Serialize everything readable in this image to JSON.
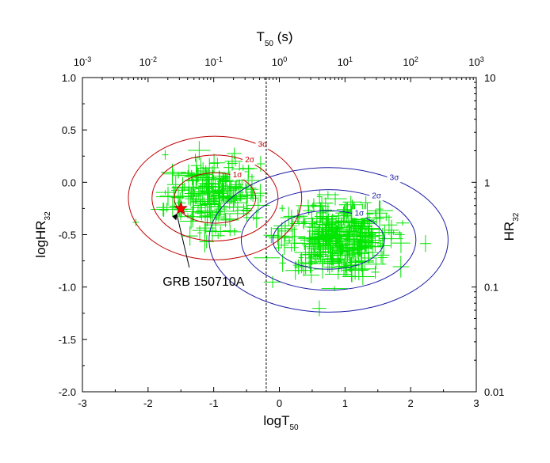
{
  "chart_data": {
    "type": "scatter",
    "title": "",
    "xlabel": {
      "base": "logT",
      "sub": "50"
    },
    "ylabel": {
      "base": "logHR",
      "sub": "32"
    },
    "top_xlabel": {
      "base": "T",
      "sub": "50",
      "suffix": " (s)"
    },
    "right_ylabel": {
      "base": "HR",
      "sub": "32"
    },
    "xlim": [
      -3,
      3
    ],
    "ylim": [
      -2.0,
      1.0
    ],
    "x_ticks": [
      "-3",
      "-2",
      "-1",
      "0",
      "1",
      "2",
      "3"
    ],
    "y_ticks": [
      "-2.0",
      "-1.5",
      "-1.0",
      "-0.5",
      "0.0",
      "0.5",
      "1.0"
    ],
    "top_x_ticks": [
      {
        "base": "10",
        "exp": "-3"
      },
      {
        "base": "10",
        "exp": "-2"
      },
      {
        "base": "10",
        "exp": "-1"
      },
      {
        "base": "10",
        "exp": "0"
      },
      {
        "base": "10",
        "exp": "1"
      },
      {
        "base": "10",
        "exp": "2"
      },
      {
        "base": "10",
        "exp": "3"
      }
    ],
    "right_y_ticks": [
      "0.01",
      "0.1",
      "1",
      "10"
    ],
    "grid": false,
    "divider_x": -0.2,
    "colors": {
      "points": "#00e600",
      "short_contours": "#c00000",
      "long_contours": "#1a1aa6",
      "star": "#ff0000",
      "divider": "#000000"
    },
    "short_cluster": {
      "center": [
        -1.0,
        -0.12
      ],
      "spread": [
        0.35,
        0.17
      ],
      "count": 200,
      "contours": [
        {
          "label": "1σ",
          "cx": -0.98,
          "cy": -0.15,
          "rx": 0.62,
          "ry": 0.24
        },
        {
          "label": "2σ",
          "cx": -0.98,
          "cy": -0.15,
          "rx": 0.96,
          "ry": 0.41
        },
        {
          "label": "3σ",
          "cx": -0.98,
          "cy": -0.15,
          "rx": 1.32,
          "ry": 0.59
        }
      ]
    },
    "long_cluster": {
      "center": [
        0.85,
        -0.52
      ],
      "spread": [
        0.42,
        0.17
      ],
      "count": 340,
      "contours": [
        {
          "label": "1σ",
          "cx": 0.75,
          "cy": -0.55,
          "rx": 0.85,
          "ry": 0.28
        },
        {
          "label": "2σ",
          "cx": 0.75,
          "cy": -0.55,
          "rx": 1.33,
          "ry": 0.48
        },
        {
          "label": "3σ",
          "cx": 0.75,
          "cy": -0.55,
          "rx": 1.82,
          "ry": 0.69
        }
      ]
    },
    "highlight": {
      "name": "GRB 150710A",
      "x": -1.5,
      "y": -0.25
    },
    "annotation": {
      "text": "GRB 150710A",
      "text_x": -2.0,
      "text_y": -0.95
    }
  }
}
